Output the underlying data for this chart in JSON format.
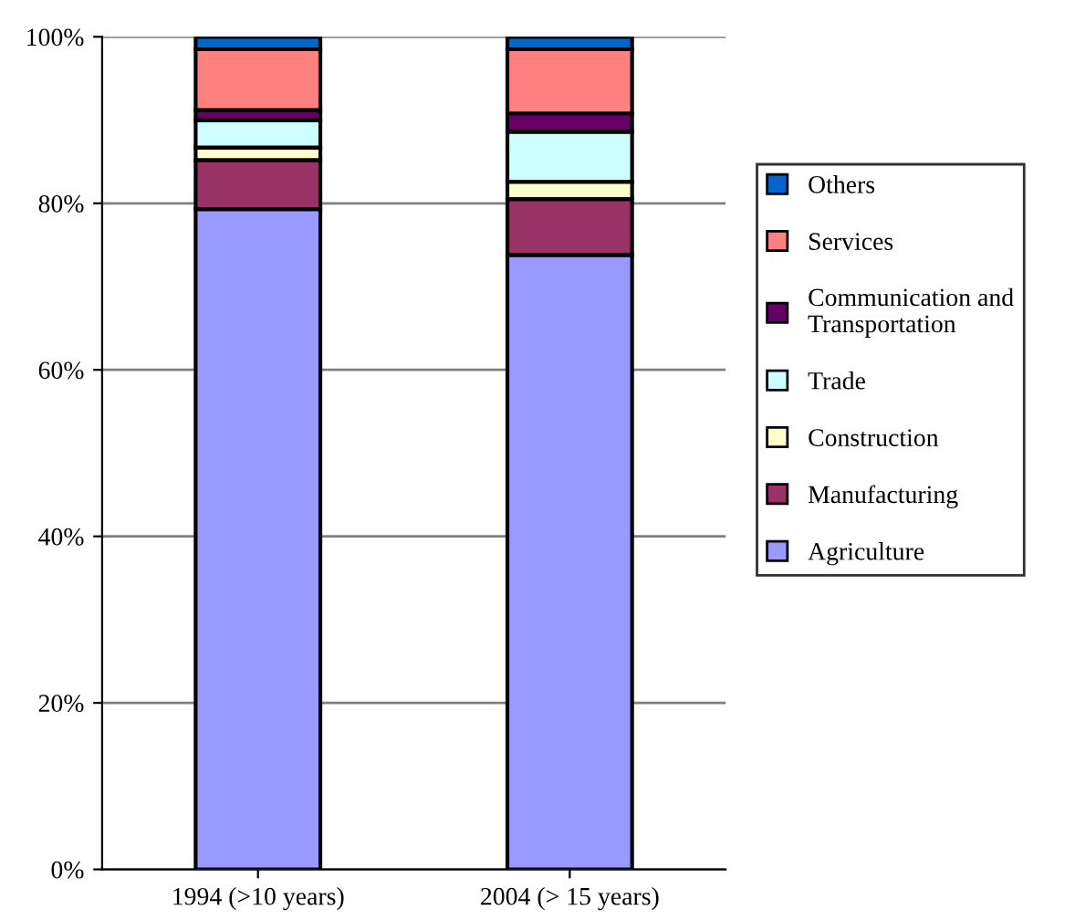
{
  "chart_data": {
    "type": "bar",
    "stacked": true,
    "categories": [
      "1994 (>10 years)",
      "2004 (> 15 years)"
    ],
    "series": [
      {
        "name": "Agriculture",
        "color": "#9999ff",
        "values": [
          79.3,
          73.8
        ]
      },
      {
        "name": "Manufacturing",
        "color": "#993366",
        "values": [
          5.9,
          6.7
        ]
      },
      {
        "name": "Construction",
        "color": "#ffffcc",
        "values": [
          1.5,
          2.1
        ]
      },
      {
        "name": "Trade",
        "color": "#ccffff",
        "values": [
          3.3,
          6.0
        ]
      },
      {
        "name": "Communication and Transportation",
        "color": "#660066",
        "values": [
          1.2,
          2.2
        ]
      },
      {
        "name": "Services",
        "color": "#ff8080",
        "values": [
          7.3,
          7.7
        ]
      },
      {
        "name": "Others",
        "color": "#0066cc",
        "values": [
          1.5,
          1.5
        ]
      }
    ],
    "ylim": [
      0,
      100
    ],
    "yticks": [
      {
        "value": 0,
        "label": "0%"
      },
      {
        "value": 20,
        "label": "20%"
      },
      {
        "value": 40,
        "label": "40%"
      },
      {
        "value": 60,
        "label": "60%"
      },
      {
        "value": 80,
        "label": "80%"
      },
      {
        "value": 100,
        "label": "100%"
      }
    ],
    "grid": "y",
    "legend": "right"
  }
}
